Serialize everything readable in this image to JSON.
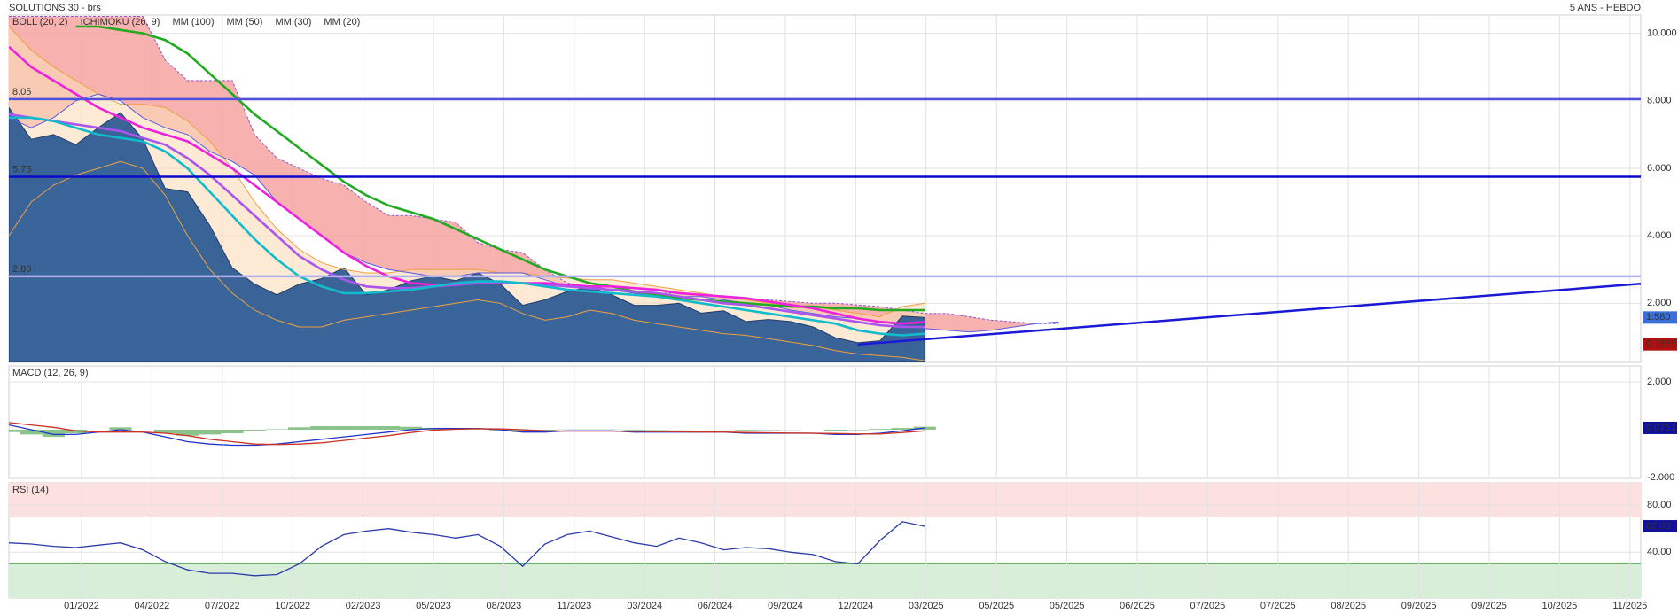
{
  "chart_data": [
    {
      "type": "price",
      "title": "SOLUTIONS 30 - brs",
      "subtitle": "5 ANS - HEBDO",
      "ylim": [
        0.25,
        10.54
      ],
      "yticks": [
        {
          "value": 2,
          "label": "2.000"
        },
        {
          "value": 4,
          "label": "4.000"
        },
        {
          "value": 6,
          "label": "6.000"
        },
        {
          "value": 8,
          "label": "8.000"
        },
        {
          "value": 10,
          "label": "10.000"
        }
      ],
      "grid": true,
      "price": {
        "color": "#2f5d95",
        "values": [
          7.8,
          6.86,
          7.0,
          6.7,
          7.2,
          7.65,
          6.86,
          5.4,
          5.3,
          4.3,
          3.05,
          2.57,
          2.25,
          2.57,
          2.73,
          3.05,
          2.25,
          2.4,
          2.67,
          2.8,
          2.67,
          2.9,
          2.57,
          1.94,
          2.1,
          2.35,
          2.48,
          2.25,
          1.94,
          1.94,
          2.0,
          1.71,
          1.78,
          1.46,
          1.52,
          1.46,
          1.3,
          0.98,
          0.83,
          0.89,
          1.62,
          1.58
        ]
      },
      "series": [
        {
          "name": "BOLL (20, 2)",
          "color": "#f0a040",
          "kind": "band",
          "upper": [
            10.2,
            9.5,
            9.0,
            8.6,
            8.2,
            7.9,
            7.9,
            7.8,
            7.4,
            6.8,
            6.0,
            5.0,
            4.2,
            3.6,
            3.2,
            3.0,
            2.9,
            2.9,
            3.0,
            3.0,
            3.0,
            3.0,
            2.9,
            2.9,
            2.8,
            2.75,
            2.7,
            2.7,
            2.6,
            2.5,
            2.4,
            2.3,
            2.2,
            2.1,
            2.0,
            1.95,
            1.9,
            1.8,
            1.7,
            1.6,
            1.9,
            2.0
          ],
          "lower": [
            4.0,
            5.0,
            5.5,
            5.8,
            6.0,
            6.2,
            6.0,
            5.2,
            4.0,
            3.0,
            2.3,
            1.8,
            1.5,
            1.3,
            1.3,
            1.5,
            1.6,
            1.7,
            1.8,
            1.9,
            2.0,
            2.1,
            2.0,
            1.7,
            1.5,
            1.6,
            1.8,
            1.7,
            1.5,
            1.4,
            1.3,
            1.2,
            1.1,
            1.05,
            0.95,
            0.85,
            0.75,
            0.6,
            0.5,
            0.45,
            0.4,
            0.3
          ]
        },
        {
          "name": "ICHIMOKU (26, 9)",
          "color": "#1a1a8c",
          "kind": "cloud",
          "span_a": [
            10.5,
            10.5,
            10.5,
            10.5,
            10.5,
            10.5,
            10.5,
            9.2,
            8.6,
            8.6,
            8.6,
            7.0,
            6.3,
            6.0,
            5.7,
            5.5,
            5.0,
            4.6,
            4.6,
            4.5,
            4.4,
            3.8,
            3.6,
            3.5,
            3.0,
            2.6,
            2.5,
            2.4,
            2.3,
            2.3,
            2.3,
            2.25,
            2.2,
            2.15,
            2.1,
            2.05,
            2.0,
            2.0,
            1.95,
            1.9,
            1.8,
            1.7,
            1.7,
            1.6,
            1.5,
            1.45,
            1.4,
            1.4
          ],
          "span_b": [
            7.5,
            7.2,
            7.5,
            8.0,
            8.2,
            8.0,
            7.5,
            7.2,
            7.0,
            6.5,
            6.2,
            5.8,
            5.0,
            4.5,
            4.0,
            3.5,
            3.2,
            3.0,
            2.9,
            2.8,
            2.8,
            2.9,
            2.9,
            2.9,
            2.7,
            2.5,
            2.5,
            2.4,
            2.3,
            2.2,
            2.2,
            2.2,
            2.1,
            2.0,
            1.95,
            1.8,
            1.7,
            1.6,
            1.55,
            1.45,
            1.35,
            1.25,
            1.2,
            1.15,
            1.2,
            1.3,
            1.4,
            1.45
          ]
        },
        {
          "name": "MM (100)",
          "color": "#22aa22",
          "kind": "line",
          "values": [
            null,
            null,
            null,
            10.2,
            10.2,
            10.1,
            10.0,
            9.8,
            9.4,
            8.8,
            8.2,
            7.6,
            7.1,
            6.6,
            6.1,
            5.6,
            5.2,
            4.9,
            4.7,
            4.5,
            4.2,
            3.9,
            3.6,
            3.3,
            3.0,
            2.8,
            2.6,
            2.5,
            2.35,
            2.25,
            2.15,
            2.1,
            2.05,
            2.0,
            1.95,
            1.9,
            1.9,
            1.85,
            1.85,
            1.8,
            1.8,
            1.8
          ]
        },
        {
          "name": "MM (50)",
          "color": "#ee22dd",
          "kind": "line",
          "values": [
            9.6,
            9.0,
            8.6,
            8.2,
            7.8,
            7.5,
            7.2,
            7.0,
            6.8,
            6.4,
            6.0,
            5.5,
            5.0,
            4.5,
            4.0,
            3.5,
            3.1,
            2.8,
            2.6,
            2.55,
            2.55,
            2.6,
            2.6,
            2.6,
            2.6,
            2.55,
            2.5,
            2.5,
            2.45,
            2.4,
            2.3,
            2.25,
            2.2,
            2.15,
            2.05,
            1.95,
            1.85,
            1.7,
            1.55,
            1.45,
            1.4,
            1.45
          ]
        },
        {
          "name": "MM (30)",
          "color": "#aa55ee",
          "kind": "line",
          "values": [
            7.6,
            7.5,
            7.4,
            7.3,
            7.2,
            7.1,
            6.9,
            6.7,
            6.3,
            5.8,
            5.2,
            4.6,
            4.0,
            3.4,
            3.0,
            2.7,
            2.5,
            2.45,
            2.45,
            2.5,
            2.55,
            2.6,
            2.6,
            2.6,
            2.55,
            2.5,
            2.45,
            2.4,
            2.35,
            2.3,
            2.2,
            2.1,
            2.0,
            1.95,
            1.85,
            1.75,
            1.65,
            1.55,
            1.45,
            1.35,
            1.3,
            1.3
          ]
        },
        {
          "name": "MM (20)",
          "color": "#11bbcc",
          "kind": "line",
          "values": [
            7.5,
            7.5,
            7.4,
            7.2,
            7.0,
            6.9,
            6.8,
            6.5,
            6.0,
            5.3,
            4.6,
            3.9,
            3.3,
            2.8,
            2.5,
            2.3,
            2.3,
            2.35,
            2.4,
            2.5,
            2.6,
            2.65,
            2.65,
            2.6,
            2.5,
            2.4,
            2.35,
            2.3,
            2.25,
            2.2,
            2.1,
            2.0,
            1.9,
            1.8,
            1.7,
            1.6,
            1.5,
            1.4,
            1.2,
            1.1,
            1.05,
            1.1
          ]
        }
      ],
      "levels": [
        {
          "value": 8.05,
          "label": "8.05",
          "color": "#5050e0"
        },
        {
          "value": 5.75,
          "label": "5.75",
          "color": "#0a0ac8"
        },
        {
          "value": 2.8,
          "label": "2.80",
          "color": "#b0b0f0"
        }
      ],
      "trendline": {
        "values": [
          0.78,
          2.58
        ],
        "color": "#1a1ad6"
      },
      "last_price": {
        "value": 1.58,
        "label": "1.580",
        "color": "#3a6fd8"
      },
      "low_price": {
        "value": 0.7835,
        "label": "0.7835",
        "color": "#b01010"
      }
    },
    {
      "type": "macd",
      "title": "MACD (12, 26, 9)",
      "ylim": [
        -2.04,
        2.67
      ],
      "yticks": [
        {
          "value": -2,
          "label": "-2.000"
        },
        {
          "value": 2,
          "label": "2.000"
        }
      ],
      "grid": true,
      "series": [
        {
          "color": "#2233cc",
          "values": [
            0.2,
            0.0,
            -0.2,
            -0.2,
            -0.1,
            0.0,
            -0.1,
            -0.3,
            -0.5,
            -0.6,
            -0.65,
            -0.65,
            -0.6,
            -0.5,
            -0.4,
            -0.3,
            -0.2,
            -0.1,
            0.0,
            0.05,
            0.05,
            0.05,
            0.0,
            -0.1,
            -0.1,
            -0.05,
            -0.05,
            -0.05,
            -0.1,
            -0.1,
            -0.1,
            -0.1,
            -0.1,
            -0.15,
            -0.15,
            -0.15,
            -0.15,
            -0.2,
            -0.2,
            -0.15,
            -0.05,
            0.0751
          ]
        },
        {
          "color": "#cc3322",
          "values": [
            0.3,
            0.2,
            0.1,
            -0.05,
            -0.1,
            -0.1,
            -0.1,
            -0.15,
            -0.25,
            -0.4,
            -0.5,
            -0.6,
            -0.62,
            -0.6,
            -0.55,
            -0.45,
            -0.35,
            -0.25,
            -0.12,
            -0.02,
            0.02,
            0.04,
            0.03,
            0.0,
            -0.05,
            -0.06,
            -0.06,
            -0.06,
            -0.07,
            -0.08,
            -0.09,
            -0.1,
            -0.1,
            -0.12,
            -0.13,
            -0.14,
            -0.15,
            -0.16,
            -0.18,
            -0.18,
            -0.12,
            -0.05
          ]
        }
      ],
      "histogram": {
        "color": "#5aab5a",
        "values": [
          -0.1,
          -0.2,
          -0.3,
          -0.15,
          0.0,
          0.1,
          0.0,
          -0.15,
          -0.25,
          -0.2,
          -0.15,
          -0.05,
          0.02,
          0.1,
          0.15,
          0.15,
          0.15,
          0.15,
          0.12,
          0.07,
          0.03,
          0.01,
          -0.03,
          -0.1,
          -0.05,
          0.01,
          0.01,
          0.01,
          -0.03,
          -0.02,
          -0.01,
          0.0,
          0.0,
          -0.03,
          -0.02,
          -0.01,
          0.0,
          -0.04,
          -0.02,
          0.03,
          0.07,
          0.125
        ]
      },
      "last_value": {
        "value": 0.0751,
        "label": "0.0751",
        "color": "#10109a"
      }
    },
    {
      "type": "rsi",
      "title": "RSI (14)",
      "ylim": [
        1,
        99
      ],
      "yticks": [
        {
          "value": 40,
          "label": "40.00"
        },
        {
          "value": 80,
          "label": "80.00"
        }
      ],
      "grid": true,
      "overbought": 70,
      "oversold": 30,
      "series": [
        {
          "color": "#2a3aa8",
          "values": [
            48,
            47,
            45,
            44,
            46,
            48,
            42,
            32,
            25,
            22,
            22,
            20,
            21,
            30,
            45,
            55,
            58,
            60,
            57,
            55,
            52,
            55,
            45,
            28,
            47,
            55,
            58,
            53,
            48,
            45,
            52,
            48,
            42,
            44,
            43,
            40,
            38,
            32,
            30,
            50,
            66,
            62.03
          ]
        }
      ],
      "last_value": {
        "value": 62.03,
        "label": "62.03",
        "color": "#10109a"
      },
      "xtick_labels": [
        "01/2022",
        "04/2022",
        "07/2022",
        "10/2022",
        "02/2023",
        "05/2023",
        "08/2023",
        "11/2023",
        "03/2024",
        "06/2024",
        "09/2024",
        "12/2024",
        "03/2025",
        "05/2025",
        "05/2025",
        "06/2025",
        "07/2025",
        "07/2025",
        "08/2025",
        "09/2025",
        "09/2025",
        "10/2025",
        "11/2025"
      ]
    }
  ]
}
